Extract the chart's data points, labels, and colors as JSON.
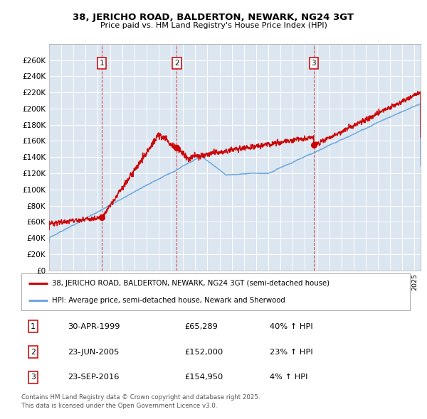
{
  "title1": "38, JERICHO ROAD, BALDERTON, NEWARK, NG24 3GT",
  "title2": "Price paid vs. HM Land Registry's House Price Index (HPI)",
  "legend_line1": "38, JERICHO ROAD, BALDERTON, NEWARK, NG24 3GT (semi-detached house)",
  "legend_line2": "HPI: Average price, semi-detached house, Newark and Sherwood",
  "transactions": [
    {
      "label": "1",
      "date": "30-APR-1999",
      "date_num": 1999.33,
      "price": 65289,
      "hpi_pct": "40% ↑ HPI"
    },
    {
      "label": "2",
      "date": "23-JUN-2005",
      "date_num": 2005.48,
      "price": 152000,
      "hpi_pct": "23% ↑ HPI"
    },
    {
      "label": "3",
      "date": "23-SEP-2016",
      "date_num": 2016.73,
      "price": 154950,
      "hpi_pct": "4% ↑ HPI"
    }
  ],
  "ylim": [
    0,
    280000
  ],
  "xlim_start": 1995.0,
  "xlim_end": 2025.5,
  "plot_bg_color": "#dce6f1",
  "red_line_color": "#cc0000",
  "blue_line_color": "#6fa8dc",
  "footer": "Contains HM Land Registry data © Crown copyright and database right 2025.\nThis data is licensed under the Open Government Licence v3.0.",
  "ytick_labels": [
    "£0",
    "£20K",
    "£40K",
    "£60K",
    "£80K",
    "£100K",
    "£120K",
    "£140K",
    "£160K",
    "£180K",
    "£200K",
    "£220K",
    "£240K",
    "£260K"
  ],
  "ytick_values": [
    0,
    20000,
    40000,
    60000,
    80000,
    100000,
    120000,
    140000,
    160000,
    180000,
    200000,
    220000,
    240000,
    260000
  ]
}
